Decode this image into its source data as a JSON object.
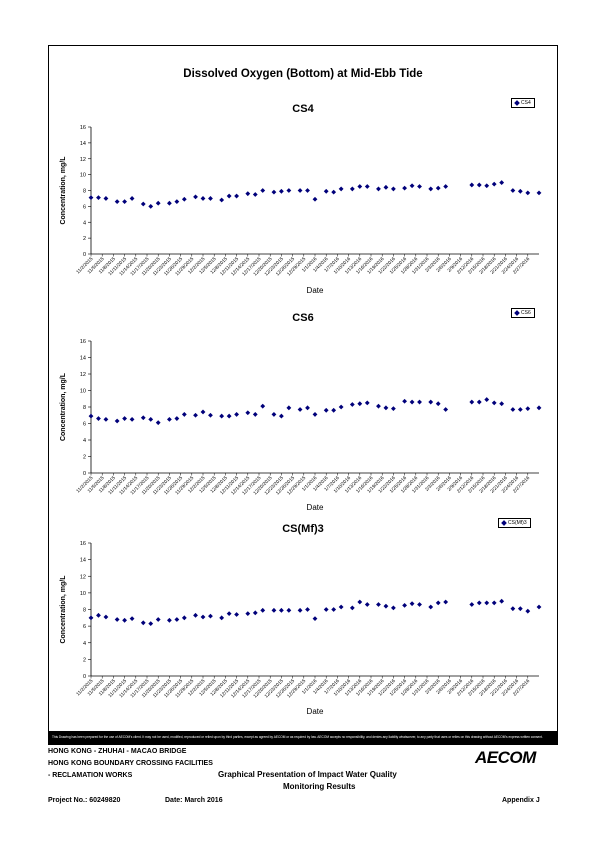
{
  "header": {
    "title": "Dissolved Oxygen (Bottom) at Mid-Ebb Tide"
  },
  "chart_data": [
    {
      "type": "scatter",
      "title": "CS4",
      "legend": "CS4",
      "xlabel": "Date",
      "ylabel": "Concentration, mg/L",
      "ylim": [
        0,
        16
      ],
      "yticks": [
        0,
        2,
        4,
        6,
        8,
        10,
        12,
        14,
        16
      ],
      "grid": false,
      "legend_position": "top-right",
      "color": "#00007a",
      "xtick_labels": [
        "11/2/2015",
        "11/5/2015",
        "11/8/2015",
        "11/11/2015",
        "11/14/2015",
        "11/17/2015",
        "11/20/2015",
        "11/23/2015",
        "11/26/2015",
        "11/29/2015",
        "12/2/2015",
        "12/5/2015",
        "12/8/2015",
        "12/11/2015",
        "12/14/2015",
        "12/17/2015",
        "12/20/2015",
        "12/23/2015",
        "12/26/2015",
        "12/29/2015",
        "1/1/2016",
        "1/4/2016",
        "1/7/2016",
        "1/10/2016",
        "1/13/2016",
        "1/16/2016",
        "1/19/2016",
        "1/22/2016",
        "1/25/2016",
        "1/28/2016",
        "1/31/2016",
        "2/3/2016",
        "2/6/2016",
        "2/9/2016",
        "2/12/2016",
        "2/15/2016",
        "2/18/2016",
        "2/21/2016",
        "2/24/2016",
        "2/27/2016"
      ],
      "x": [
        "11/2/2015",
        "11/4/2015",
        "11/6/2015",
        "11/9/2015",
        "11/11/2015",
        "11/13/2015",
        "11/16/2015",
        "11/18/2015",
        "11/20/2015",
        "11/23/2015",
        "11/25/2015",
        "11/27/2015",
        "11/30/2015",
        "12/2/2015",
        "12/4/2015",
        "12/7/2015",
        "12/9/2015",
        "12/11/2015",
        "12/14/2015",
        "12/16/2015",
        "12/18/2015",
        "12/21/2015",
        "12/23/2015",
        "12/25/2015",
        "12/28/2015",
        "12/30/2015",
        "1/1/2016",
        "1/4/2016",
        "1/6/2016",
        "1/8/2016",
        "1/11/2016",
        "1/13/2016",
        "1/15/2016",
        "1/18/2016",
        "1/20/2016",
        "1/22/2016",
        "1/25/2016",
        "1/27/2016",
        "1/29/2016",
        "2/1/2016",
        "2/3/2016",
        "2/5/2016",
        "2/12/2016",
        "2/14/2016",
        "2/16/2016",
        "2/18/2016",
        "2/20/2016",
        "2/23/2016",
        "2/25/2016",
        "2/27/2016",
        "3/1/2016"
      ],
      "y": [
        7.1,
        7.1,
        7.0,
        6.6,
        6.6,
        7.0,
        6.3,
        6.0,
        6.4,
        6.4,
        6.6,
        6.9,
        7.2,
        7.0,
        7.0,
        6.8,
        7.3,
        7.3,
        7.6,
        7.5,
        8.0,
        7.8,
        7.9,
        8.0,
        8.0,
        8.0,
        6.9,
        7.9,
        7.8,
        8.2,
        8.2,
        8.5,
        8.5,
        8.2,
        8.4,
        8.2,
        8.3,
        8.6,
        8.5,
        8.2,
        8.3,
        8.5,
        8.7,
        8.7,
        8.6,
        8.8,
        9.0,
        8.0,
        7.9,
        7.7,
        7.7
      ]
    },
    {
      "type": "scatter",
      "title": "CS6",
      "legend": "CS6",
      "xlabel": "Date",
      "ylabel": "Concentration, mg/L",
      "ylim": [
        0,
        16
      ],
      "yticks": [
        0,
        2,
        4,
        6,
        8,
        10,
        12,
        14,
        16
      ],
      "grid": false,
      "legend_position": "top-right",
      "color": "#00007a",
      "xtick_labels": [
        "11/2/2015",
        "11/5/2015",
        "11/8/2015",
        "11/11/2015",
        "11/14/2015",
        "11/17/2015",
        "11/20/2015",
        "11/23/2015",
        "11/26/2015",
        "11/29/2015",
        "12/2/2015",
        "12/5/2015",
        "12/8/2015",
        "12/11/2015",
        "12/14/2015",
        "12/17/2015",
        "12/20/2015",
        "12/23/2015",
        "12/26/2015",
        "12/29/2015",
        "1/1/2016",
        "1/4/2016",
        "1/7/2016",
        "1/10/2016",
        "1/13/2016",
        "1/16/2016",
        "1/19/2016",
        "1/22/2016",
        "1/25/2016",
        "1/28/2016",
        "1/31/2016",
        "2/3/2016",
        "2/6/2016",
        "2/9/2016",
        "2/12/2016",
        "2/15/2016",
        "2/18/2016",
        "2/21/2016",
        "2/24/2016",
        "2/27/2016"
      ],
      "x": [
        "11/2/2015",
        "11/4/2015",
        "11/6/2015",
        "11/9/2015",
        "11/11/2015",
        "11/13/2015",
        "11/16/2015",
        "11/18/2015",
        "11/20/2015",
        "11/23/2015",
        "11/25/2015",
        "11/27/2015",
        "11/30/2015",
        "12/2/2015",
        "12/4/2015",
        "12/7/2015",
        "12/9/2015",
        "12/11/2015",
        "12/14/2015",
        "12/16/2015",
        "12/18/2015",
        "12/21/2015",
        "12/23/2015",
        "12/25/2015",
        "12/28/2015",
        "12/30/2015",
        "1/1/2016",
        "1/4/2016",
        "1/6/2016",
        "1/8/2016",
        "1/11/2016",
        "1/13/2016",
        "1/15/2016",
        "1/18/2016",
        "1/20/2016",
        "1/22/2016",
        "1/25/2016",
        "1/27/2016",
        "1/29/2016",
        "2/1/2016",
        "2/3/2016",
        "2/5/2016",
        "2/12/2016",
        "2/14/2016",
        "2/16/2016",
        "2/18/2016",
        "2/20/2016",
        "2/23/2016",
        "2/25/2016",
        "2/27/2016",
        "3/1/2016"
      ],
      "y": [
        6.9,
        6.6,
        6.5,
        6.3,
        6.6,
        6.5,
        6.7,
        6.5,
        6.1,
        6.5,
        6.6,
        7.1,
        7.0,
        7.4,
        7.0,
        6.9,
        6.9,
        7.1,
        7.3,
        7.1,
        8.1,
        7.1,
        6.9,
        7.9,
        7.7,
        7.9,
        7.1,
        7.6,
        7.6,
        8.0,
        8.3,
        8.4,
        8.5,
        8.1,
        7.9,
        7.8,
        8.7,
        8.6,
        8.6,
        8.6,
        8.4,
        7.7,
        8.6,
        8.6,
        8.9,
        8.5,
        8.4,
        7.7,
        7.7,
        7.8,
        7.9
      ]
    },
    {
      "type": "scatter",
      "title": "CS(Mf)3",
      "legend": "CS(Mf)3",
      "xlabel": "Date",
      "ylabel": "Concentration, mg/L",
      "ylim": [
        0,
        16
      ],
      "yticks": [
        0,
        2,
        4,
        6,
        8,
        10,
        12,
        14,
        16
      ],
      "grid": false,
      "legend_position": "top-right",
      "color": "#00007a",
      "xtick_labels": [
        "11/2/2015",
        "11/5/2015",
        "11/8/2015",
        "11/11/2015",
        "11/14/2015",
        "11/17/2015",
        "11/20/2015",
        "11/23/2015",
        "11/26/2015",
        "11/29/2015",
        "12/2/2015",
        "12/5/2015",
        "12/8/2015",
        "12/11/2015",
        "12/14/2015",
        "12/17/2015",
        "12/20/2015",
        "12/23/2015",
        "12/26/2015",
        "12/29/2015",
        "1/1/2016",
        "1/4/2016",
        "1/7/2016",
        "1/10/2016",
        "1/13/2016",
        "1/16/2016",
        "1/19/2016",
        "1/22/2016",
        "1/25/2016",
        "1/28/2016",
        "1/31/2016",
        "2/3/2016",
        "2/6/2016",
        "2/9/2016",
        "2/12/2016",
        "2/15/2016",
        "2/18/2016",
        "2/21/2016",
        "2/24/2016",
        "2/27/2016"
      ],
      "x": [
        "11/2/2015",
        "11/4/2015",
        "11/6/2015",
        "11/9/2015",
        "11/11/2015",
        "11/13/2015",
        "11/16/2015",
        "11/18/2015",
        "11/20/2015",
        "11/23/2015",
        "11/25/2015",
        "11/27/2015",
        "11/30/2015",
        "12/2/2015",
        "12/4/2015",
        "12/7/2015",
        "12/9/2015",
        "12/11/2015",
        "12/14/2015",
        "12/16/2015",
        "12/18/2015",
        "12/21/2015",
        "12/23/2015",
        "12/25/2015",
        "12/28/2015",
        "12/30/2015",
        "1/1/2016",
        "1/4/2016",
        "1/6/2016",
        "1/8/2016",
        "1/11/2016",
        "1/13/2016",
        "1/15/2016",
        "1/18/2016",
        "1/20/2016",
        "1/22/2016",
        "1/25/2016",
        "1/27/2016",
        "1/29/2016",
        "2/1/2016",
        "2/3/2016",
        "2/5/2016",
        "2/12/2016",
        "2/14/2016",
        "2/16/2016",
        "2/18/2016",
        "2/20/2016",
        "2/23/2016",
        "2/25/2016",
        "2/27/2016",
        "3/1/2016"
      ],
      "y": [
        7.0,
        7.3,
        7.1,
        6.8,
        6.7,
        6.9,
        6.4,
        6.3,
        6.8,
        6.7,
        6.8,
        7.0,
        7.3,
        7.1,
        7.2,
        7.0,
        7.5,
        7.4,
        7.5,
        7.6,
        7.9,
        7.9,
        7.9,
        7.9,
        7.9,
        8.0,
        6.9,
        8.0,
        8.0,
        8.3,
        8.2,
        8.9,
        8.6,
        8.6,
        8.4,
        8.2,
        8.5,
        8.7,
        8.6,
        8.3,
        8.8,
        8.9,
        8.6,
        8.8,
        8.8,
        8.8,
        9.0,
        8.1,
        8.1,
        7.8,
        8.3
      ]
    }
  ],
  "disclaimer": "This Drawing has been prepared for the use of AECOM's client. It may not be used, modified, reproduced or relied upon by third parties, except as agreed by AECOM or as required by law. AECOM accepts no responsibility, and denies any liability whatsoever, to any party that uses or relies on this drawing without AECOM's express written consent.",
  "footer": {
    "line1": "HONG KONG - ZHUHAI - MACAO BRIDGE",
    "line2": "HONG KONG BOUNDARY CROSSING FACILITIES",
    "line3": "- RECLAMATION WORKS",
    "center_line1": "Graphical Presentation of Impact Water Quality",
    "center_line2": "Monitoring Results",
    "project": "Project No.: 60249820",
    "date": "Date: March 2016",
    "appendix": "Appendix J",
    "logo": "AECOM"
  }
}
